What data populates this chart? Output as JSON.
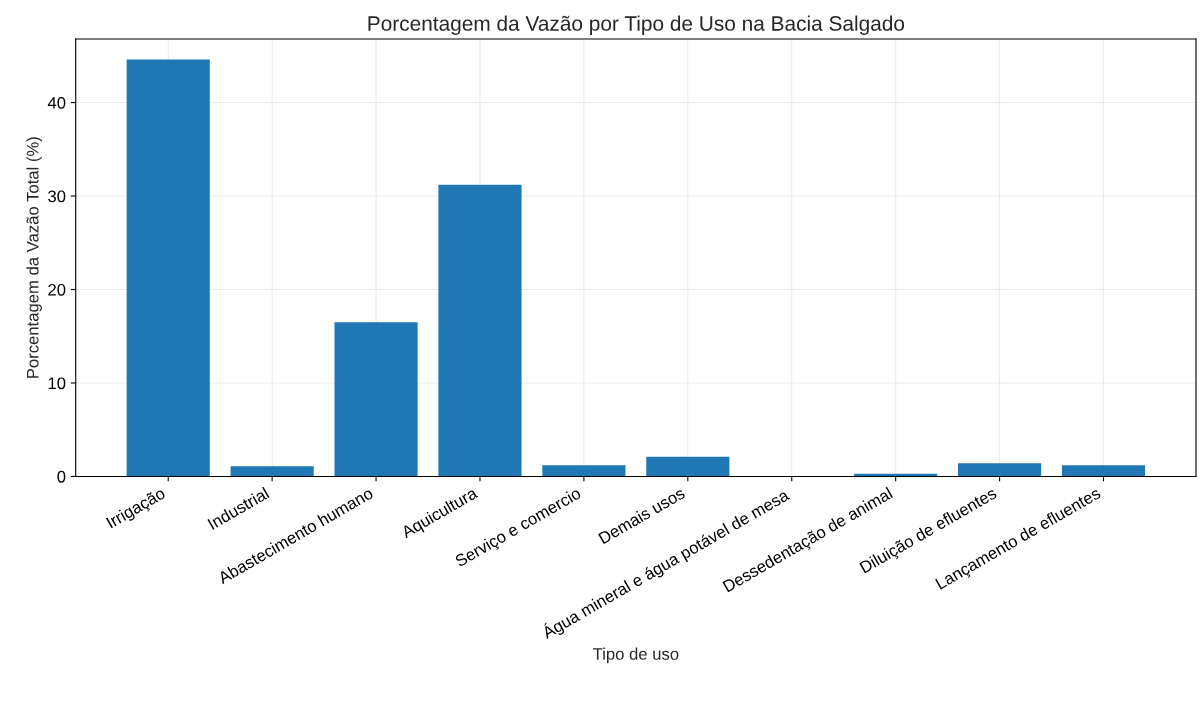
{
  "chart_data": {
    "type": "bar",
    "title": "Porcentagem da Vazão por Tipo de Uso na Bacia Salgado",
    "xlabel": "Tipo de uso",
    "ylabel": "Porcentagem da Vazão Total (%)",
    "categories": [
      "Irrigação",
      "Industrial",
      "Abastecimento humano",
      "Aquicultura",
      "Serviço e comercio",
      "Demais usos",
      "Água mineral e água potável de mesa",
      "Dessedentação de animal",
      "Diluição de efluentes",
      "Lançamento de efluentes"
    ],
    "values": [
      44.6,
      1.1,
      16.5,
      31.2,
      1.2,
      2.1,
      0.0,
      0.3,
      1.4,
      1.2
    ],
    "color": "#1f77b4",
    "ylim": [
      0,
      46.8
    ],
    "yticks": [
      0,
      10,
      20,
      30,
      40
    ],
    "grid": true
  }
}
